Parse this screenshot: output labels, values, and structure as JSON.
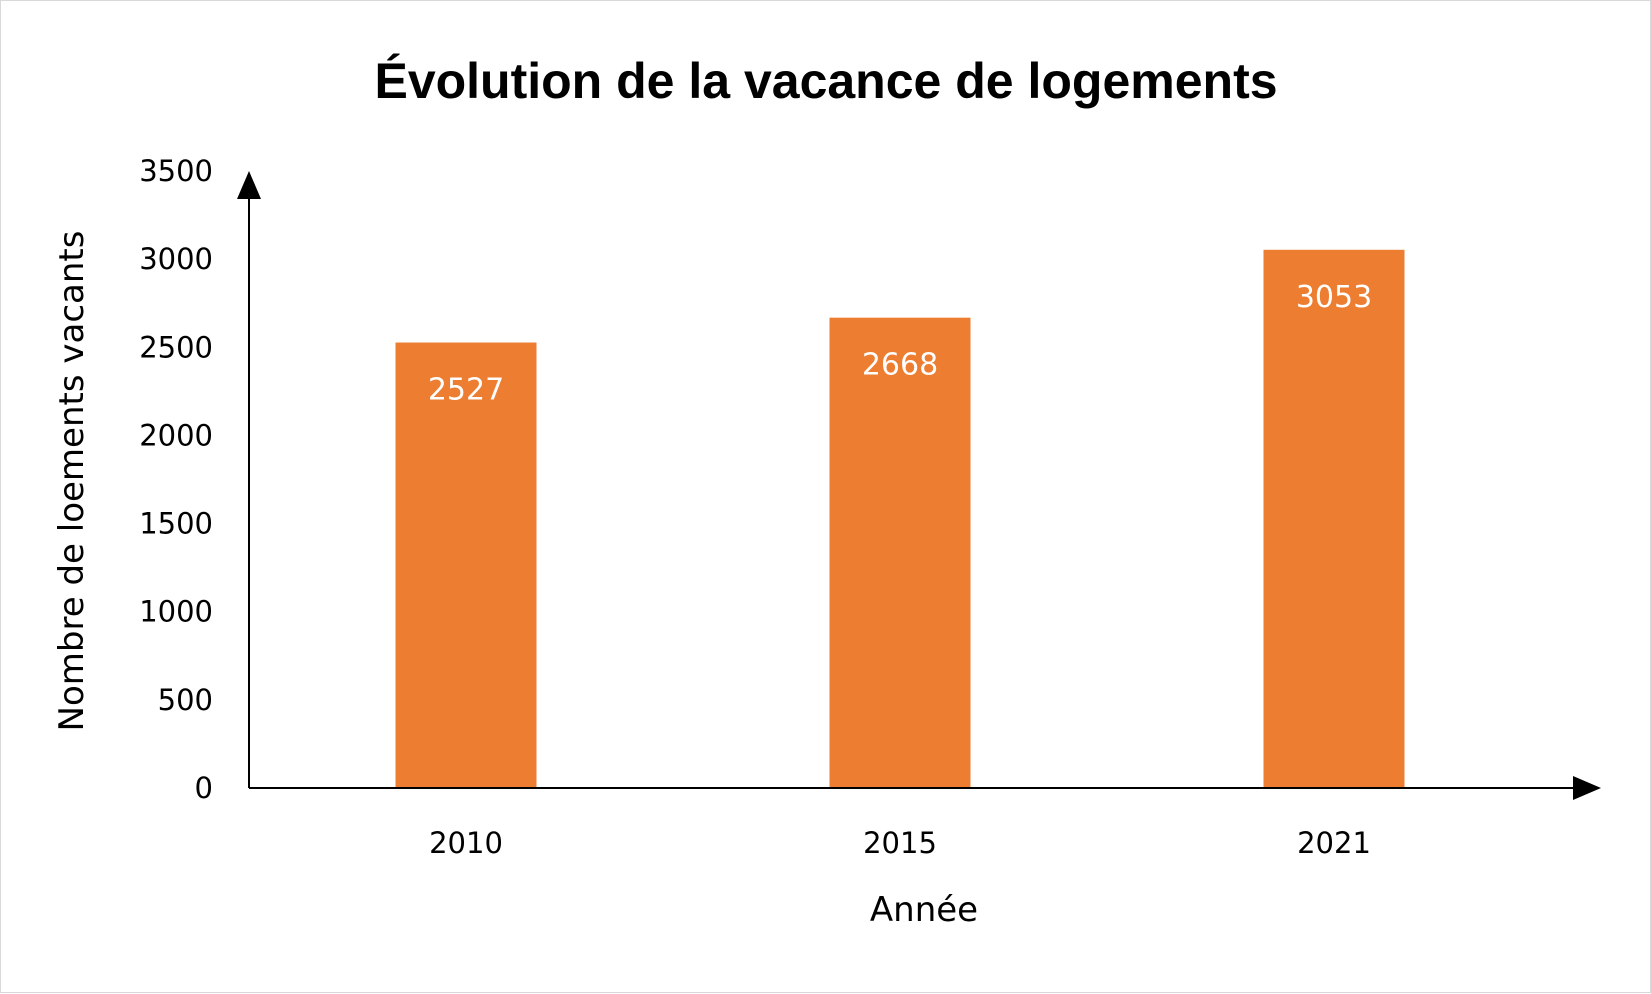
{
  "chart_data": {
    "type": "bar",
    "title": "Évolution de la vacance de logements",
    "xlabel": "Année",
    "ylabel": "Nombre de loements vacants",
    "categories": [
      "2010",
      "2015",
      "2021"
    ],
    "values": [
      2527,
      2668,
      3053
    ],
    "data_labels": [
      "2527",
      "2668",
      "3053"
    ],
    "ylim": [
      0,
      3500
    ],
    "yticks": [
      "0",
      "500",
      "1000",
      "1500",
      "2000",
      "2500",
      "3000",
      "3500"
    ],
    "bar_color": "#ED7D31",
    "data_label_color": "#FFFFFF",
    "grid": false,
    "legend": "none"
  }
}
